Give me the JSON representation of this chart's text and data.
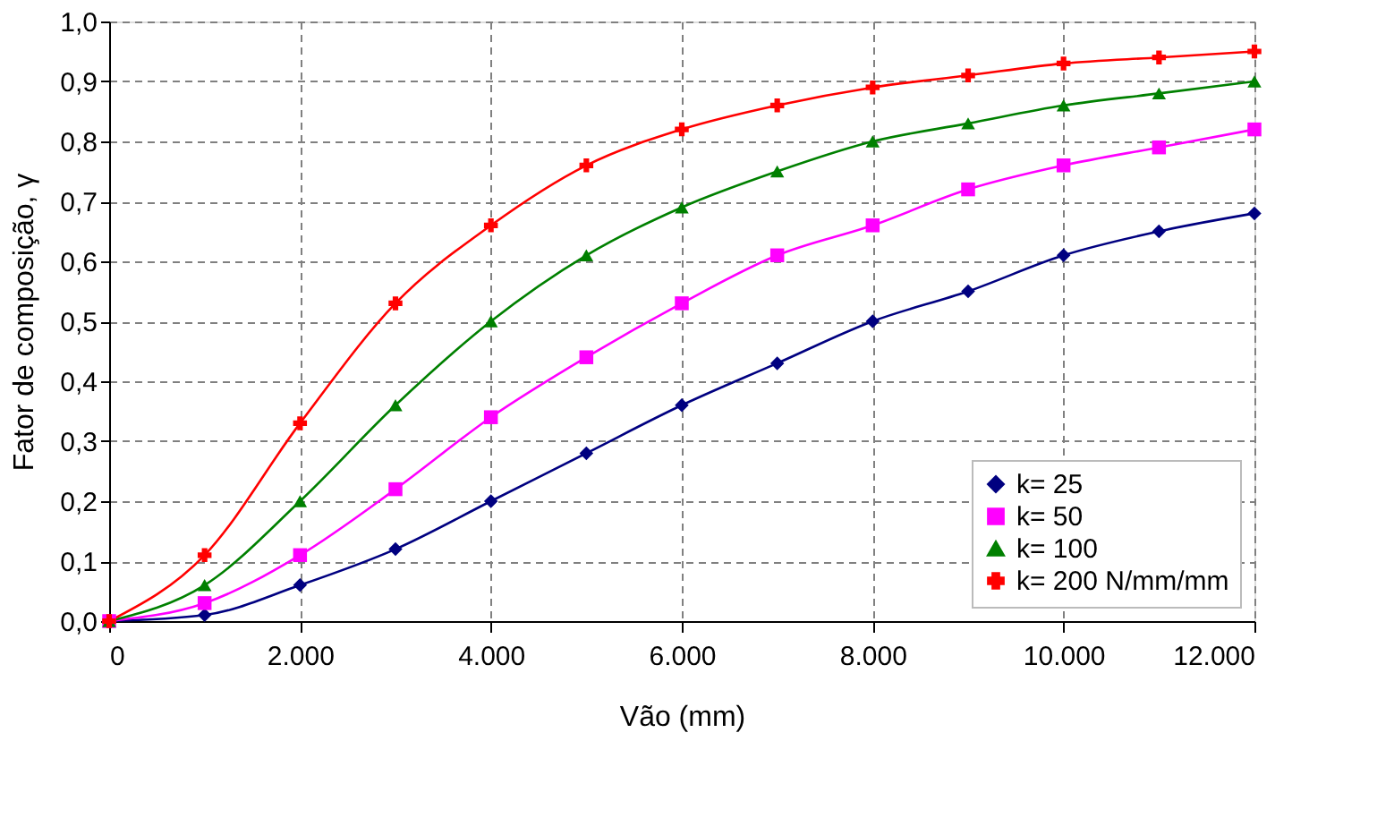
{
  "chart_data": {
    "type": "line",
    "xlabel": "Vão (mm)",
    "ylabel": "Fator de composição, γ",
    "x": [
      0,
      1000,
      2000,
      3000,
      4000,
      5000,
      6000,
      7000,
      8000,
      9000,
      10000,
      11000,
      12000
    ],
    "series": [
      {
        "name": "k= 25",
        "color": "#000080",
        "marker": "diamond",
        "values": [
          0,
          0.01,
          0.06,
          0.12,
          0.2,
          0.28,
          0.36,
          0.43,
          0.5,
          0.55,
          0.61,
          0.65,
          0.68
        ]
      },
      {
        "name": "k= 50",
        "color": "#ff00ff",
        "marker": "square",
        "values": [
          0,
          0.03,
          0.11,
          0.22,
          0.34,
          0.44,
          0.53,
          0.61,
          0.66,
          0.72,
          0.76,
          0.79,
          0.82
        ]
      },
      {
        "name": "k= 100",
        "color": "#008000",
        "marker": "triangle",
        "values": [
          0,
          0.06,
          0.2,
          0.36,
          0.5,
          0.61,
          0.69,
          0.75,
          0.8,
          0.83,
          0.86,
          0.88,
          0.9
        ]
      },
      {
        "name": "k= 200 N/mm/mm",
        "color": "#ff0000",
        "marker": "cross",
        "values": [
          0,
          0.11,
          0.33,
          0.53,
          0.66,
          0.76,
          0.82,
          0.86,
          0.89,
          0.91,
          0.93,
          0.94,
          0.95
        ]
      }
    ],
    "xlim": [
      0,
      12000
    ],
    "xticks": [
      0,
      {
        "value": 2000,
        "label": "2.000"
      },
      {
        "value": 4000,
        "label": "4.000"
      },
      {
        "value": 6000,
        "label": "6.000"
      },
      {
        "value": 8000,
        "label": "8.000"
      },
      {
        "value": 10000,
        "label": "10.000"
      },
      {
        "value": 12000,
        "label": "12.000"
      }
    ],
    "ylim": [
      0,
      1
    ],
    "yticks": [
      {
        "value": 0,
        "label": "0,0"
      },
      {
        "value": 0.1,
        "label": "0,1"
      },
      {
        "value": 0.2,
        "label": "0,2"
      },
      {
        "value": 0.3,
        "label": "0,3"
      },
      {
        "value": 0.4,
        "label": "0,4"
      },
      {
        "value": 0.5,
        "label": "0,5"
      },
      {
        "value": 0.6,
        "label": "0,6"
      },
      {
        "value": 0.7,
        "label": "0,7"
      },
      {
        "value": 0.8,
        "label": "0,8"
      },
      {
        "value": 0.9,
        "label": "0,9"
      },
      {
        "value": 1,
        "label": "1,0"
      }
    ],
    "grid": true,
    "legend": "bottom right",
    "line_style": "solid"
  }
}
